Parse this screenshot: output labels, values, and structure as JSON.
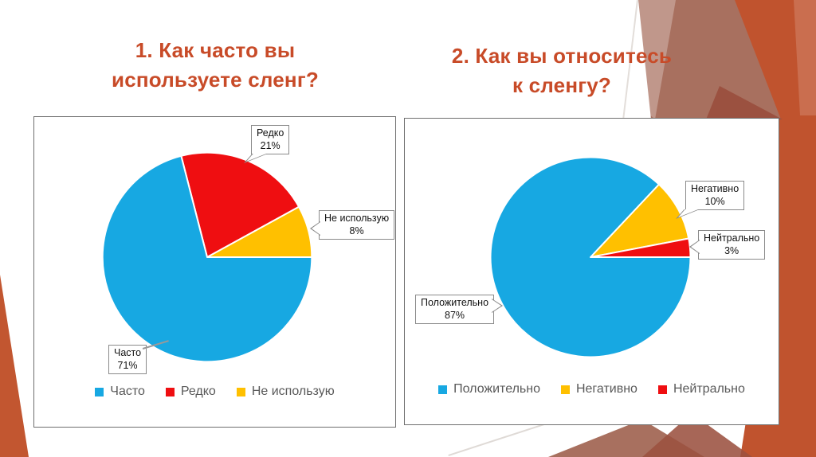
{
  "slide": {
    "titles": [
      {
        "line1": "1. Как часто вы",
        "line2": "используете сленг?"
      },
      {
        "line1": "2. Как вы относитесь",
        "line2": "к сленгу?"
      }
    ]
  },
  "chart_data": [
    {
      "type": "pie",
      "title": "1. Как часто вы используете сленг?",
      "categories": [
        "Часто",
        "Редко",
        "Не использую"
      ],
      "values": [
        71,
        21,
        8
      ],
      "slices": [
        {
          "label": "Часто",
          "value": 71,
          "pct_label": "71%",
          "color": "#17A8E2"
        },
        {
          "label": "Редко",
          "value": 21,
          "pct_label": "21%",
          "color": "#EF0E11"
        },
        {
          "label": "Не использую",
          "value": 8,
          "pct_label": "8%",
          "color": "#FFC000"
        }
      ],
      "draw": {
        "start_angle_deg": -14.4,
        "order": [
          "Редко",
          "Не использую",
          "Часто"
        ]
      },
      "legend_position": "bottom",
      "data_labels": "name and percent in white callout boxes"
    },
    {
      "type": "pie",
      "title": "2. Как вы относитесь к сленгу?",
      "categories": [
        "Положительно",
        "Негативно",
        "Нейтрально"
      ],
      "values": [
        87,
        10,
        3
      ],
      "slices": [
        {
          "label": "Положительно",
          "value": 87,
          "pct_label": "87%",
          "color": "#17A8E2"
        },
        {
          "label": "Негативно",
          "value": 10,
          "pct_label": "10%",
          "color": "#FFC000"
        },
        {
          "label": "Нейтрально",
          "value": 3,
          "pct_label": "3%",
          "color": "#EF0E11"
        }
      ],
      "draw": {
        "start_angle_deg": 43.2,
        "order": [
          "Негативно",
          "Нейтрально",
          "Положительно"
        ]
      },
      "legend_position": "bottom",
      "data_labels": "name and percent in white callout boxes"
    }
  ],
  "theme": {
    "title_color": "#C84B28",
    "decoration_orange": "#C0532E",
    "decoration_muted_brown": "#A8705F",
    "decoration_dark_brown": "#9B5140",
    "legend_text_color": "#595959",
    "panel_border_color": "#6F6F6F"
  }
}
